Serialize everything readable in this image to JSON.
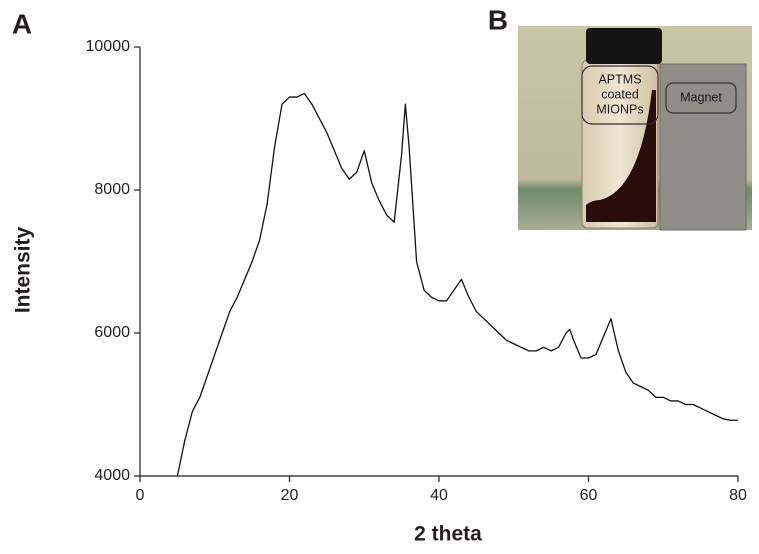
{
  "chart_data": {
    "type": "line",
    "panel_labels": [
      "A",
      "B"
    ],
    "xlabel": "2 theta",
    "ylabel": "Intensity",
    "xlim": [
      0,
      80
    ],
    "ylim": [
      4000,
      10000
    ],
    "xticks": [
      0,
      20,
      40,
      60,
      80
    ],
    "yticks": [
      4000,
      6000,
      8000,
      10000
    ],
    "inset_labels": [
      [
        "APTMS",
        "coated",
        "MIONPs"
      ],
      [
        "Magnet"
      ]
    ],
    "x": [
      5,
      6,
      7,
      8,
      9,
      10,
      11,
      12,
      13,
      14,
      15,
      16,
      17,
      18,
      19,
      20,
      21,
      22,
      23,
      24,
      25,
      26,
      27,
      28,
      29,
      30,
      31,
      32,
      33,
      34,
      35,
      35.5,
      36,
      37,
      38,
      39,
      40,
      41,
      42,
      43,
      44,
      45,
      46,
      47,
      48,
      49,
      50,
      51,
      52,
      53,
      54,
      55,
      56,
      57,
      57.5,
      58,
      59,
      60,
      61,
      62,
      63,
      64,
      65,
      66,
      67,
      68,
      69,
      70,
      71,
      72,
      73,
      74,
      75,
      76,
      77,
      78,
      79,
      80
    ],
    "series": [
      {
        "color": "#111111",
        "values": [
          4000,
          4500,
          4900,
          5100,
          5400,
          5700,
          6000,
          6300,
          6500,
          6750,
          7000,
          7300,
          7800,
          8600,
          9200,
          9300,
          9300,
          9350,
          9200,
          9000,
          8800,
          8550,
          8300,
          8150,
          8250,
          8550,
          8100,
          7850,
          7650,
          7550,
          8500,
          9200,
          8600,
          7000,
          6600,
          6500,
          6450,
          6450,
          6600,
          6750,
          6500,
          6300,
          6200,
          6100,
          6000,
          5900,
          5850,
          5800,
          5750,
          5750,
          5800,
          5750,
          5800,
          6000,
          6050,
          5900,
          5650,
          5650,
          5700,
          5950,
          6200,
          5750,
          5450,
          5300,
          5250,
          5200,
          5100,
          5100,
          5050,
          5050,
          5000,
          5000,
          4950,
          4900,
          4850,
          4800,
          4780,
          4780
        ]
      }
    ]
  }
}
